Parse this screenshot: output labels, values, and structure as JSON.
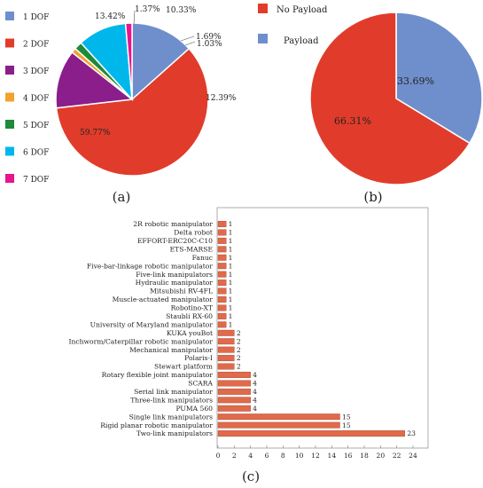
{
  "panels": {
    "a": "(a)",
    "b": "(b)",
    "c": "(c)"
  },
  "chart_data": [
    {
      "type": "pie",
      "panel": "(a)",
      "legend_placement": "left",
      "slices": [
        {
          "label": "1 DOF",
          "value": 13.42,
          "value_label": "13.42%",
          "color": "#6f8fcc"
        },
        {
          "label": "2 DOF",
          "value": 59.77,
          "value_label": "59.77%",
          "color": "#e13c2b"
        },
        {
          "label": "3 DOF",
          "value": 12.39,
          "value_label": "12.39%",
          "color": "#8b1e8b"
        },
        {
          "label": "4 DOF",
          "value": 1.03,
          "value_label": "1.03%",
          "color": "#f2a230"
        },
        {
          "label": "5 DOF",
          "value": 1.69,
          "value_label": "1.69%",
          "color": "#1f8a3a"
        },
        {
          "label": "6 DOF",
          "value": 10.33,
          "value_label": "10.33%",
          "color": "#00b7ec"
        },
        {
          "label": "7 DOF",
          "value": 1.37,
          "value_label": "1.37%",
          "color": "#e8158c"
        }
      ]
    },
    {
      "type": "pie",
      "panel": "(b)",
      "legend_placement": "top",
      "slices": [
        {
          "label": "Payload",
          "value": 33.69,
          "value_label": "33.69%",
          "color": "#6f8fcc"
        },
        {
          "label": "No Payload",
          "value": 66.31,
          "value_label": "66.31%",
          "color": "#e13c2b"
        }
      ]
    },
    {
      "type": "bar",
      "orientation": "horizontal",
      "panel": "(c)",
      "bar_color": "#e06a4a",
      "xlim": [
        0,
        24
      ],
      "xticks": [
        0,
        2,
        4,
        6,
        8,
        10,
        12,
        14,
        16,
        18,
        20,
        22,
        24
      ],
      "grid": false,
      "categories": [
        "2R robotic manipulator",
        "Delta robot",
        "EFFORT-ERC20C-C10",
        "ETS-MARSE",
        "Fanuc",
        "Five-bar-linkage robotic manipulator",
        "Five-link manipulators",
        "Hydraulic manipulator",
        "Mitsubishi RV-4FL",
        "Muscle-actuated manipulator",
        "Robotino-XT",
        "Staubli RX-60",
        "University of Maryland manipulator",
        "KUKA youBot",
        "Inchworm/Caterpillar robotic manipulator",
        "Mechanical manipulator",
        "Polaris-I",
        "Stewart platform",
        "Rotary flexible joint manipulator",
        "SCARA",
        "Serial link manipulator",
        "Three-link manipulators",
        "PUMA 560",
        "Single link manipulators",
        "Rigid planar robotic manipulator",
        "Two-link manipulators"
      ],
      "values": [
        1,
        1,
        1,
        1,
        1,
        1,
        1,
        1,
        1,
        1,
        1,
        1,
        1,
        2,
        2,
        2,
        2,
        2,
        4,
        4,
        4,
        4,
        4,
        15,
        15,
        23
      ]
    }
  ]
}
